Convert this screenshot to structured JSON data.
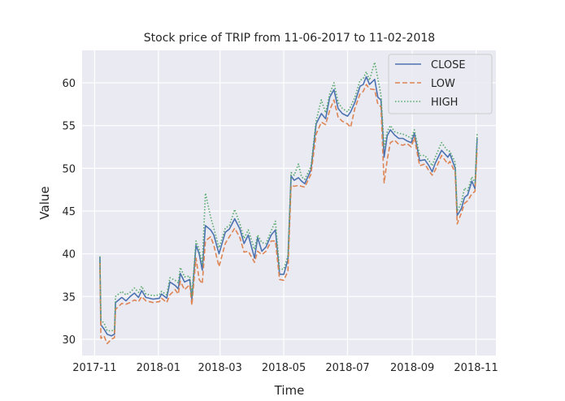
{
  "chart_data": {
    "type": "line",
    "title": "Stock price of TRIP from 11-06-2017 to 11-02-2018",
    "xlabel": "Time",
    "ylabel": "Value",
    "xlim": [
      "2017-10-20",
      "2018-11-20"
    ],
    "ylim": [
      28.1,
      63.8
    ],
    "x_ticks": [
      "2017-11",
      "2018-01",
      "2018-03",
      "2018-05",
      "2018-07",
      "2018-09",
      "2018-11"
    ],
    "y_ticks": [
      30,
      35,
      40,
      45,
      50,
      55,
      60
    ],
    "grid": true,
    "legend_position": "top-right",
    "background": "#eaeaf2",
    "x": [
      "2017-11-06",
      "2017-11-07",
      "2017-11-10",
      "2017-11-13",
      "2017-11-17",
      "2017-11-20",
      "2017-11-21",
      "2017-11-27",
      "2017-12-01",
      "2017-12-05",
      "2017-12-09",
      "2017-12-13",
      "2017-12-16",
      "2017-12-20",
      "2017-12-27",
      "2018-01-02",
      "2018-01-04",
      "2018-01-09",
      "2018-01-12",
      "2018-01-17",
      "2018-01-20",
      "2018-01-22",
      "2018-01-26",
      "2018-01-31",
      "2018-02-02",
      "2018-02-06",
      "2018-02-09",
      "2018-02-12",
      "2018-02-15",
      "2018-02-20",
      "2018-02-23",
      "2018-02-28",
      "2018-03-06",
      "2018-03-10",
      "2018-03-15",
      "2018-03-20",
      "2018-03-24",
      "2018-03-28",
      "2018-04-03",
      "2018-04-06",
      "2018-04-10",
      "2018-04-14",
      "2018-04-19",
      "2018-04-23",
      "2018-04-27",
      "2018-05-01",
      "2018-05-05",
      "2018-05-08",
      "2018-05-11",
      "2018-05-15",
      "2018-05-18",
      "2018-05-21",
      "2018-05-27",
      "2018-06-01",
      "2018-06-06",
      "2018-06-10",
      "2018-06-14",
      "2018-06-18",
      "2018-06-22",
      "2018-06-26",
      "2018-07-01",
      "2018-07-04",
      "2018-07-08",
      "2018-07-13",
      "2018-07-16",
      "2018-07-19",
      "2018-07-22",
      "2018-07-27",
      "2018-07-30",
      "2018-08-02",
      "2018-08-05",
      "2018-08-08",
      "2018-08-11",
      "2018-08-15",
      "2018-08-19",
      "2018-08-23",
      "2018-08-27",
      "2018-08-31",
      "2018-09-03",
      "2018-09-08",
      "2018-09-13",
      "2018-09-17",
      "2018-09-20",
      "2018-09-23",
      "2018-09-29",
      "2018-10-05",
      "2018-10-07",
      "2018-10-12",
      "2018-10-14",
      "2018-10-18",
      "2018-10-21",
      "2018-10-24",
      "2018-10-28",
      "2018-10-31",
      "2018-11-02"
    ],
    "series": [
      {
        "name": "CLOSE",
        "color": "#4c72b0",
        "style": "solid",
        "values": [
          39.6,
          31.7,
          31.2,
          30.6,
          30.4,
          30.6,
          34.3,
          34.9,
          34.5,
          35.0,
          35.4,
          34.9,
          35.7,
          34.9,
          34.7,
          34.8,
          35.3,
          34.8,
          36.7,
          36.3,
          35.9,
          37.7,
          36.7,
          37.0,
          34.6,
          41.0,
          40.0,
          38.1,
          43.3,
          42.8,
          42.2,
          40.0,
          42.5,
          42.9,
          44.1,
          42.9,
          41.2,
          42.2,
          39.5,
          41.9,
          40.3,
          40.8,
          42.2,
          42.8,
          37.6,
          37.6,
          39.3,
          49.1,
          48.6,
          48.9,
          48.5,
          48.2,
          49.8,
          55.2,
          56.4,
          55.8,
          58.3,
          59.2,
          57.0,
          56.4,
          56.1,
          56.6,
          57.7,
          59.6,
          59.8,
          60.7,
          59.8,
          60.4,
          58.3,
          58.0,
          51.3,
          53.8,
          54.5,
          53.9,
          53.5,
          53.5,
          53.2,
          53.0,
          54.1,
          50.9,
          51.0,
          50.3,
          49.6,
          50.6,
          52.1,
          51.3,
          51.7,
          50.0,
          44.5,
          45.3,
          46.6,
          46.9,
          48.5,
          47.6,
          53.5
        ]
      },
      {
        "name": "LOW",
        "color": "#dd8452",
        "style": "dashed",
        "values": [
          39.0,
          30.1,
          30.4,
          29.5,
          30.0,
          30.2,
          33.5,
          34.2,
          34.1,
          34.3,
          34.6,
          34.4,
          35.0,
          34.5,
          34.3,
          34.4,
          34.8,
          34.3,
          35.2,
          35.8,
          35.3,
          36.8,
          35.8,
          36.4,
          34.0,
          39.5,
          37.0,
          36.5,
          41.5,
          42.0,
          41.0,
          38.5,
          41.2,
          42.0,
          43.0,
          41.9,
          40.2,
          40.3,
          39.0,
          40.3,
          39.9,
          40.3,
          41.5,
          41.5,
          37.0,
          36.9,
          38.0,
          48.0,
          47.9,
          48.0,
          47.9,
          47.8,
          49.3,
          54.0,
          55.4,
          55.1,
          56.8,
          58.0,
          56.0,
          55.5,
          55.2,
          54.8,
          57.0,
          58.7,
          59.0,
          59.8,
          59.3,
          59.2,
          57.5,
          57.2,
          48.3,
          51.0,
          53.0,
          53.3,
          52.8,
          52.7,
          52.9,
          52.5,
          53.6,
          50.3,
          50.5,
          49.7,
          49.2,
          49.8,
          51.5,
          50.5,
          50.8,
          49.5,
          43.5,
          44.8,
          45.9,
          46.2,
          47.0,
          47.3,
          52.3
        ]
      },
      {
        "name": "HIGH",
        "color": "#55a868",
        "style": "dotted",
        "values": [
          39.7,
          32.2,
          31.9,
          31.0,
          31.0,
          31.1,
          35.0,
          35.6,
          35.2,
          35.5,
          36.0,
          35.5,
          36.2,
          35.3,
          35.1,
          35.2,
          35.6,
          35.2,
          37.2,
          36.9,
          36.6,
          38.4,
          37.3,
          37.4,
          35.0,
          41.5,
          40.5,
          38.8,
          47.1,
          44.3,
          43.0,
          40.7,
          43.0,
          43.3,
          45.2,
          43.5,
          41.8,
          42.8,
          40.5,
          42.2,
          41.3,
          41.2,
          42.7,
          43.8,
          38.2,
          38.2,
          39.8,
          49.5,
          49.2,
          50.5,
          49.0,
          48.7,
          50.2,
          55.6,
          58.0,
          56.5,
          58.7,
          60.0,
          57.7,
          57.0,
          56.6,
          57.2,
          58.3,
          60.3,
          60.5,
          61.3,
          60.3,
          62.4,
          60.5,
          58.6,
          52.5,
          54.3,
          55.0,
          54.3,
          54.1,
          54.0,
          53.8,
          53.5,
          54.5,
          51.5,
          51.5,
          50.9,
          50.3,
          51.3,
          53.0,
          52.0,
          52.0,
          50.7,
          45.0,
          46.0,
          47.7,
          47.4,
          49.0,
          48.3,
          54.0
        ]
      }
    ]
  }
}
